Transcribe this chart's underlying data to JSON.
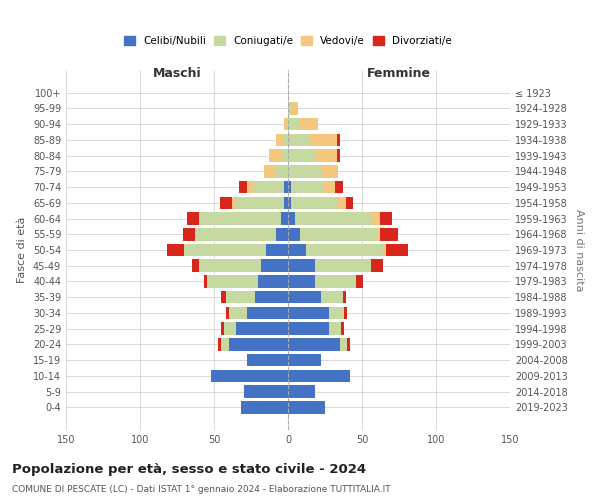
{
  "age_groups": [
    "0-4",
    "5-9",
    "10-14",
    "15-19",
    "20-24",
    "25-29",
    "30-34",
    "35-39",
    "40-44",
    "45-49",
    "50-54",
    "55-59",
    "60-64",
    "65-69",
    "70-74",
    "75-79",
    "80-84",
    "85-89",
    "90-94",
    "95-99",
    "100+"
  ],
  "birth_years": [
    "2019-2023",
    "2014-2018",
    "2009-2013",
    "2004-2008",
    "1999-2003",
    "1994-1998",
    "1989-1993",
    "1984-1988",
    "1979-1983",
    "1974-1978",
    "1969-1973",
    "1964-1968",
    "1959-1963",
    "1954-1958",
    "1949-1953",
    "1944-1948",
    "1939-1943",
    "1934-1938",
    "1929-1933",
    "1924-1928",
    "≤ 1923"
  ],
  "colors": {
    "celibi": "#4472C4",
    "coniugati": "#C5D9A0",
    "vedovi": "#F5C77E",
    "divorziati": "#D9261C"
  },
  "maschi": {
    "celibi": [
      32,
      30,
      52,
      28,
      40,
      35,
      28,
      22,
      20,
      18,
      15,
      8,
      5,
      3,
      3,
      0,
      0,
      0,
      0,
      0,
      0
    ],
    "coniugati": [
      0,
      0,
      0,
      0,
      5,
      8,
      12,
      20,
      35,
      42,
      55,
      55,
      55,
      32,
      20,
      8,
      5,
      3,
      0,
      0,
      0
    ],
    "vedovi": [
      0,
      0,
      0,
      0,
      0,
      0,
      0,
      0,
      0,
      0,
      0,
      0,
      0,
      3,
      5,
      8,
      8,
      5,
      3,
      0,
      0
    ],
    "divorziati": [
      0,
      0,
      0,
      0,
      2,
      2,
      2,
      3,
      2,
      5,
      12,
      8,
      8,
      8,
      5,
      0,
      0,
      0,
      0,
      0,
      0
    ]
  },
  "femmine": {
    "celibi": [
      25,
      18,
      42,
      22,
      35,
      28,
      28,
      22,
      18,
      18,
      12,
      8,
      5,
      2,
      2,
      0,
      0,
      0,
      0,
      0,
      0
    ],
    "coniugati": [
      0,
      0,
      0,
      0,
      5,
      8,
      10,
      15,
      28,
      38,
      52,
      52,
      52,
      32,
      22,
      22,
      18,
      15,
      8,
      2,
      0
    ],
    "vedovi": [
      0,
      0,
      0,
      0,
      0,
      0,
      0,
      0,
      0,
      0,
      2,
      2,
      5,
      5,
      8,
      12,
      15,
      18,
      12,
      5,
      1
    ],
    "divorziati": [
      0,
      0,
      0,
      0,
      2,
      2,
      2,
      2,
      5,
      8,
      15,
      12,
      8,
      5,
      5,
      0,
      2,
      2,
      0,
      0,
      0
    ]
  },
  "title": "Popolazione per età, sesso e stato civile - 2024",
  "subtitle": "COMUNE DI PESCATE (LC) - Dati ISTAT 1° gennaio 2024 - Elaborazione TUTTITALIA.IT",
  "xlabel_left": "Maschi",
  "xlabel_right": "Femmine",
  "ylabel_left": "Fasce di età",
  "ylabel_right": "Anni di nascita",
  "xlim": 150,
  "legend_labels": [
    "Celibi/Nubili",
    "Coniugati/e",
    "Vedovi/e",
    "Divorziati/e"
  ],
  "background_color": "#FFFFFF",
  "grid_color": "#CCCCCC"
}
